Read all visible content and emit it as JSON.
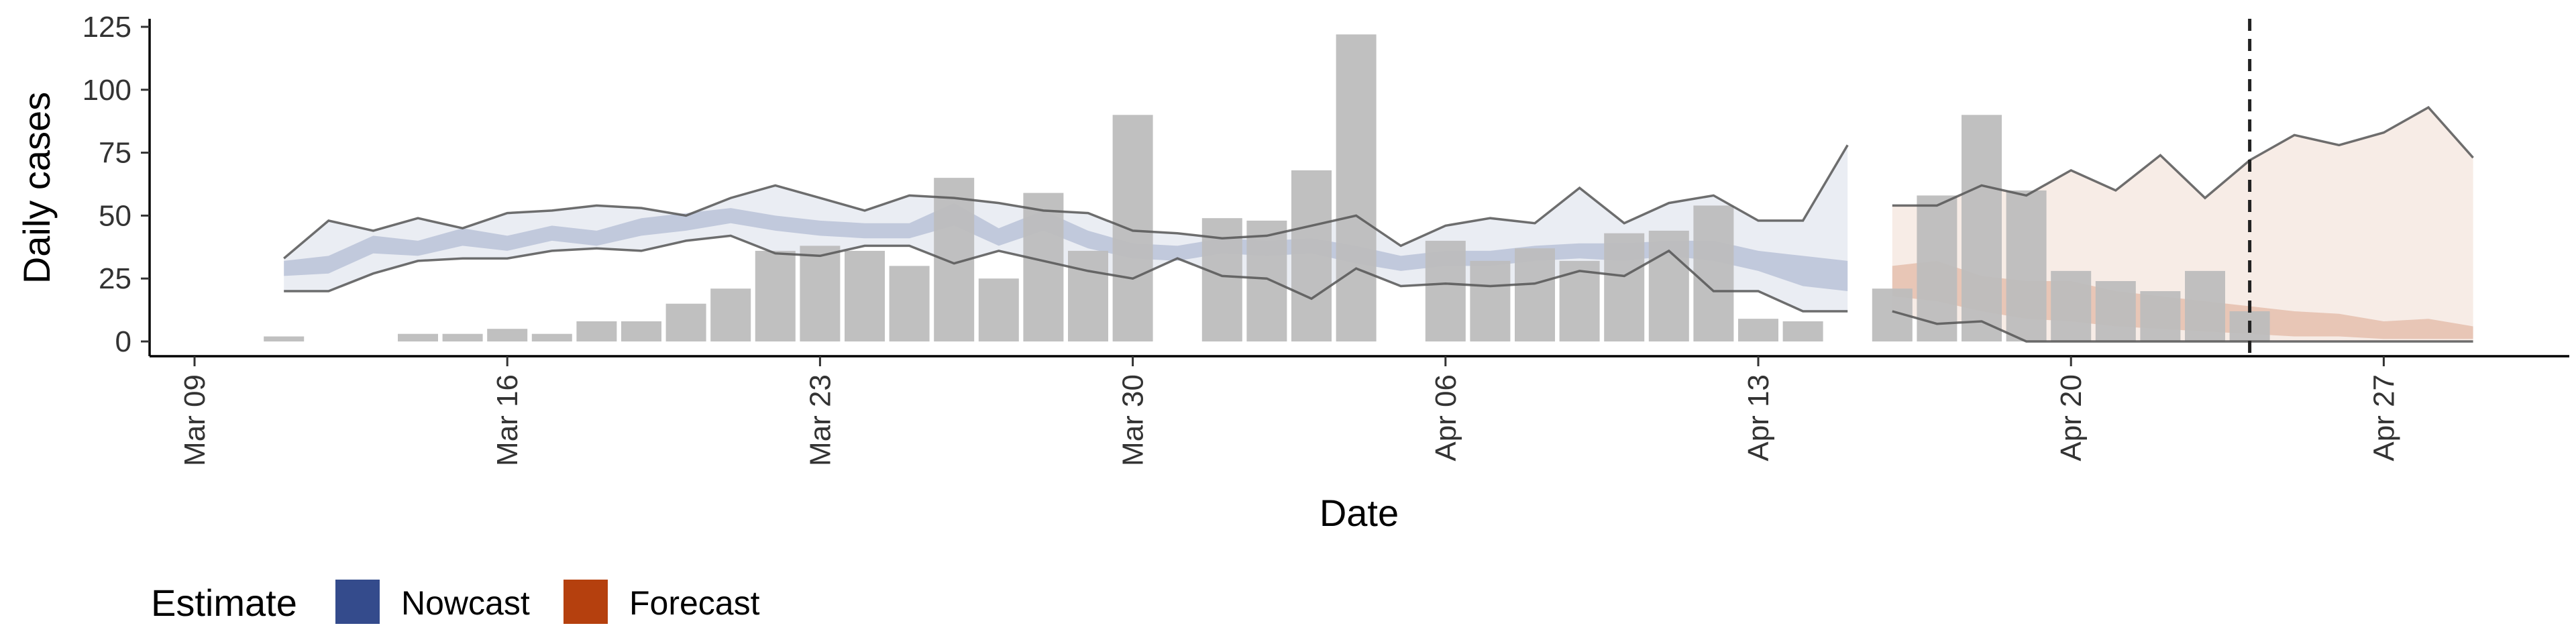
{
  "chart_data": {
    "type": "bar",
    "xlabel": "Date",
    "ylabel": "Daily cases",
    "ylim": [
      0,
      125
    ],
    "y_ticks": [
      "0",
      "25",
      "50",
      "75",
      "100",
      "125"
    ],
    "x_ticks": [
      "Mar 09",
      "Mar 16",
      "Mar 23",
      "Mar 30",
      "Apr 06",
      "Apr 13",
      "Apr 20",
      "Apr 27"
    ],
    "x_tick_dates": [
      "2020-03-09",
      "2020-03-16",
      "2020-03-23",
      "2020-03-30",
      "2020-04-06",
      "2020-04-13",
      "2020-04-20",
      "2020-04-27"
    ],
    "forecast_date": "2020-04-24",
    "legend": {
      "title": "Estimate",
      "position": "bottom-left",
      "items": [
        {
          "label": "Nowcast",
          "color": "#344b8c"
        },
        {
          "label": "Forecast",
          "color": "#b5400e"
        }
      ]
    },
    "colors": {
      "bars": "#bdbdbd",
      "nowcast": "#344b8c",
      "forecast": "#b5400e",
      "band_outline": "#555555"
    },
    "series": [
      {
        "name": "Daily cases",
        "kind": "bar",
        "points": [
          {
            "x": "2020-03-11",
            "y": 2
          },
          {
            "x": "2020-03-14",
            "y": 3
          },
          {
            "x": "2020-03-15",
            "y": 3
          },
          {
            "x": "2020-03-16",
            "y": 5
          },
          {
            "x": "2020-03-17",
            "y": 3
          },
          {
            "x": "2020-03-18",
            "y": 8
          },
          {
            "x": "2020-03-19",
            "y": 8
          },
          {
            "x": "2020-03-20",
            "y": 15
          },
          {
            "x": "2020-03-21",
            "y": 21
          },
          {
            "x": "2020-03-22",
            "y": 36
          },
          {
            "x": "2020-03-23",
            "y": 38
          },
          {
            "x": "2020-03-24",
            "y": 36
          },
          {
            "x": "2020-03-25",
            "y": 30
          },
          {
            "x": "2020-03-26",
            "y": 65
          },
          {
            "x": "2020-03-27",
            "y": 25
          },
          {
            "x": "2020-03-28",
            "y": 59
          },
          {
            "x": "2020-03-29",
            "y": 36
          },
          {
            "x": "2020-03-30",
            "y": 90
          },
          {
            "x": "2020-04-01",
            "y": 49
          },
          {
            "x": "2020-04-02",
            "y": 48
          },
          {
            "x": "2020-04-03",
            "y": 68
          },
          {
            "x": "2020-04-04",
            "y": 122
          },
          {
            "x": "2020-04-06",
            "y": 40
          },
          {
            "x": "2020-04-07",
            "y": 32
          },
          {
            "x": "2020-04-08",
            "y": 37
          },
          {
            "x": "2020-04-09",
            "y": 32
          },
          {
            "x": "2020-04-10",
            "y": 43
          },
          {
            "x": "2020-04-11",
            "y": 44
          },
          {
            "x": "2020-04-12",
            "y": 54
          },
          {
            "x": "2020-04-13",
            "y": 9
          },
          {
            "x": "2020-04-14",
            "y": 8
          },
          {
            "x": "2020-04-16",
            "y": 21
          },
          {
            "x": "2020-04-17",
            "y": 58
          },
          {
            "x": "2020-04-18",
            "y": 90
          },
          {
            "x": "2020-04-19",
            "y": 60
          },
          {
            "x": "2020-04-20",
            "y": 28
          },
          {
            "x": "2020-04-21",
            "y": 24
          },
          {
            "x": "2020-04-22",
            "y": 20
          },
          {
            "x": "2020-04-23",
            "y": 28
          },
          {
            "x": "2020-04-24",
            "y": 12
          }
        ]
      },
      {
        "name": "Nowcast",
        "kind": "band",
        "points": [
          {
            "x": "2020-03-11",
            "lower": 20,
            "upper": 33,
            "inner_lower": 26,
            "inner_upper": 32
          },
          {
            "x": "2020-03-12",
            "lower": 20,
            "upper": 48,
            "inner_lower": 27,
            "inner_upper": 34
          },
          {
            "x": "2020-03-13",
            "lower": 27,
            "upper": 44,
            "inner_lower": 35,
            "inner_upper": 42
          },
          {
            "x": "2020-03-14",
            "lower": 32,
            "upper": 49,
            "inner_lower": 34,
            "inner_upper": 40
          },
          {
            "x": "2020-03-15",
            "lower": 33,
            "upper": 45,
            "inner_lower": 38,
            "inner_upper": 45
          },
          {
            "x": "2020-03-16",
            "lower": 33,
            "upper": 51,
            "inner_lower": 36,
            "inner_upper": 42
          },
          {
            "x": "2020-03-17",
            "lower": 36,
            "upper": 52,
            "inner_lower": 40,
            "inner_upper": 46
          },
          {
            "x": "2020-03-18",
            "lower": 37,
            "upper": 54,
            "inner_lower": 38,
            "inner_upper": 44
          },
          {
            "x": "2020-03-19",
            "lower": 36,
            "upper": 53,
            "inner_lower": 42,
            "inner_upper": 49
          },
          {
            "x": "2020-03-20",
            "lower": 40,
            "upper": 50,
            "inner_lower": 44,
            "inner_upper": 51
          },
          {
            "x": "2020-03-21",
            "lower": 42,
            "upper": 57,
            "inner_lower": 47,
            "inner_upper": 53
          },
          {
            "x": "2020-03-22",
            "lower": 35,
            "upper": 62,
            "inner_lower": 44,
            "inner_upper": 50
          },
          {
            "x": "2020-03-23",
            "lower": 34,
            "upper": 57,
            "inner_lower": 42,
            "inner_upper": 48
          },
          {
            "x": "2020-03-24",
            "lower": 38,
            "upper": 52,
            "inner_lower": 41,
            "inner_upper": 47
          },
          {
            "x": "2020-03-25",
            "lower": 38,
            "upper": 58,
            "inner_lower": 41,
            "inner_upper": 47
          },
          {
            "x": "2020-03-26",
            "lower": 31,
            "upper": 57,
            "inner_lower": 46,
            "inner_upper": 55
          },
          {
            "x": "2020-03-27",
            "lower": 36,
            "upper": 55,
            "inner_lower": 38,
            "inner_upper": 45
          },
          {
            "x": "2020-03-28",
            "lower": 32,
            "upper": 52,
            "inner_lower": 44,
            "inner_upper": 52
          },
          {
            "x": "2020-03-29",
            "lower": 28,
            "upper": 51,
            "inner_lower": 37,
            "inner_upper": 44
          },
          {
            "x": "2020-03-30",
            "lower": 25,
            "upper": 44,
            "inner_lower": 33,
            "inner_upper": 39
          },
          {
            "x": "2020-03-31",
            "lower": 33,
            "upper": 43,
            "inner_lower": 32,
            "inner_upper": 38
          },
          {
            "x": "2020-04-01",
            "lower": 26,
            "upper": 41,
            "inner_lower": 35,
            "inner_upper": 41
          },
          {
            "x": "2020-04-02",
            "lower": 25,
            "upper": 42,
            "inner_lower": 34,
            "inner_upper": 40
          },
          {
            "x": "2020-04-03",
            "lower": 17,
            "upper": 46,
            "inner_lower": 35,
            "inner_upper": 41
          },
          {
            "x": "2020-04-04",
            "lower": 29,
            "upper": 50,
            "inner_lower": 31,
            "inner_upper": 38
          },
          {
            "x": "2020-04-05",
            "lower": 22,
            "upper": 38,
            "inner_lower": 28,
            "inner_upper": 34
          },
          {
            "x": "2020-04-06",
            "lower": 23,
            "upper": 46,
            "inner_lower": 30,
            "inner_upper": 36
          },
          {
            "x": "2020-04-07",
            "lower": 22,
            "upper": 49,
            "inner_lower": 30,
            "inner_upper": 36
          },
          {
            "x": "2020-04-08",
            "lower": 23,
            "upper": 47,
            "inner_lower": 32,
            "inner_upper": 38
          },
          {
            "x": "2020-04-09",
            "lower": 28,
            "upper": 61,
            "inner_lower": 33,
            "inner_upper": 39
          },
          {
            "x": "2020-04-10",
            "lower": 26,
            "upper": 47,
            "inner_lower": 32,
            "inner_upper": 39
          },
          {
            "x": "2020-04-11",
            "lower": 36,
            "upper": 55,
            "inner_lower": 34,
            "inner_upper": 40
          },
          {
            "x": "2020-04-12",
            "lower": 20,
            "upper": 58,
            "inner_lower": 32,
            "inner_upper": 40
          },
          {
            "x": "2020-04-13",
            "lower": 20,
            "upper": 48,
            "inner_lower": 28,
            "inner_upper": 36
          },
          {
            "x": "2020-04-14",
            "lower": 12,
            "upper": 48,
            "inner_lower": 22,
            "inner_upper": 34
          },
          {
            "x": "2020-04-15",
            "lower": 12,
            "upper": 78,
            "inner_lower": 20,
            "inner_upper": 32
          }
        ]
      },
      {
        "name": "Forecast",
        "kind": "band",
        "points": [
          {
            "x": "2020-04-16",
            "lower": 12,
            "upper": 54,
            "inner_lower": 18,
            "inner_upper": 30
          },
          {
            "x": "2020-04-17",
            "lower": 7,
            "upper": 54,
            "inner_lower": 16,
            "inner_upper": 32
          },
          {
            "x": "2020-04-18",
            "lower": 8,
            "upper": 62,
            "inner_lower": 12,
            "inner_upper": 26
          },
          {
            "x": "2020-04-19",
            "lower": 0,
            "upper": 58,
            "inner_lower": 9,
            "inner_upper": 24
          },
          {
            "x": "2020-04-20",
            "lower": 0,
            "upper": 68,
            "inner_lower": 8,
            "inner_upper": 24
          },
          {
            "x": "2020-04-21",
            "lower": 0,
            "upper": 60,
            "inner_lower": 6,
            "inner_upper": 20
          },
          {
            "x": "2020-04-22",
            "lower": 0,
            "upper": 74,
            "inner_lower": 5,
            "inner_upper": 18
          },
          {
            "x": "2020-04-23",
            "lower": 0,
            "upper": 57,
            "inner_lower": 4,
            "inner_upper": 16
          },
          {
            "x": "2020-04-24",
            "lower": 0,
            "upper": 72,
            "inner_lower": 3,
            "inner_upper": 14
          },
          {
            "x": "2020-04-25",
            "lower": 0,
            "upper": 82,
            "inner_lower": 2,
            "inner_upper": 12
          },
          {
            "x": "2020-04-26",
            "lower": 0,
            "upper": 78,
            "inner_lower": 2,
            "inner_upper": 11
          },
          {
            "x": "2020-04-27",
            "lower": 0,
            "upper": 83,
            "inner_lower": 1,
            "inner_upper": 8
          },
          {
            "x": "2020-04-28",
            "lower": 0,
            "upper": 93,
            "inner_lower": 1,
            "inner_upper": 9
          },
          {
            "x": "2020-04-29",
            "lower": 0,
            "upper": 73,
            "inner_lower": 1,
            "inner_upper": 6
          }
        ]
      }
    ]
  }
}
